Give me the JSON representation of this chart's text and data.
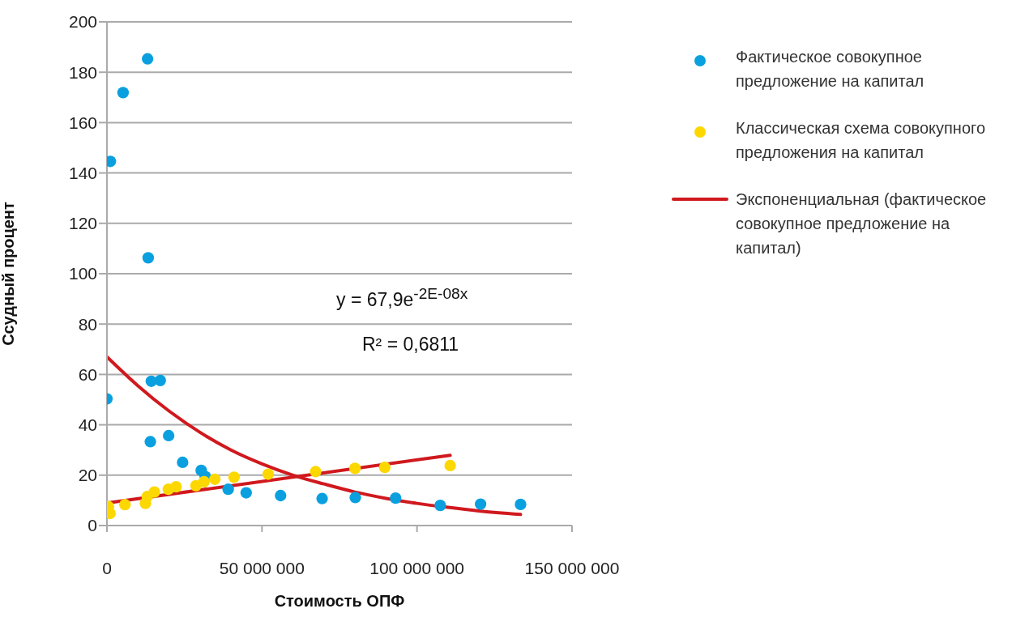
{
  "chart_data": {
    "type": "scatter",
    "xlabel": "Стоимость ОПФ",
    "ylabel": "Ссудный процент",
    "xlim": [
      0,
      150000000
    ],
    "xticks": [
      0,
      {
        "value": 50000000,
        "label": "50 000 000"
      },
      {
        "value": 100000000,
        "label": "100 000 000"
      },
      {
        "value": 150000000,
        "label": "150 000 000"
      }
    ],
    "ylim": [
      0,
      200
    ],
    "yticks": [
      0,
      20,
      40,
      60,
      80,
      100,
      120,
      140,
      160,
      180,
      200
    ],
    "grid": "y",
    "legend": "right",
    "marker": "circle",
    "annotations": [
      "y = 67,9e$^{-2E-08x}$",
      "R² = 0,6811"
    ],
    "series": [
      {
        "name": "Фактическое совокупное предложение на капитал",
        "color": "#0aa0e0",
        "x": [
          0,
          1100000,
          5200000,
          13100000,
          13300000,
          14300000,
          17200000,
          14000000,
          19900000,
          24400000,
          30400000,
          31700000,
          39100000,
          44900000,
          56000000,
          69400000,
          80100000,
          93100000,
          107500000,
          120500000,
          133400000
        ],
        "values": [
          50.3,
          144.6,
          171.9,
          185.3,
          106.3,
          57.3,
          57.6,
          33.3,
          35.7,
          25.1,
          21.9,
          19.5,
          14.4,
          13.0,
          11.9,
          10.7,
          11.1,
          10.9,
          8.0,
          8.5,
          8.4
        ]
      },
      {
        "name": "Классическая схема совокупного предложения на капитал",
        "color": "#fcd800",
        "x": [
          500000,
          1000000,
          5800000,
          12400000,
          13000000,
          15300000,
          19800000,
          22300000,
          28700000,
          31300000,
          34800000,
          41000000,
          52000000,
          67300000,
          80000000,
          89600000,
          110700000
        ],
        "values": [
          7.5,
          4.8,
          8.3,
          8.8,
          11.5,
          13.3,
          14.4,
          15.4,
          15.8,
          17.4,
          18.4,
          19.2,
          20.4,
          21.4,
          22.7,
          23.1,
          23.8
        ]
      },
      {
        "name": "Экспоненциальная (фактическое совокупное предложение на капитал)",
        "type": "line",
        "marker": "none",
        "color": "#d0191e",
        "x": [
          0,
          10000000,
          20000000,
          30000000,
          40000000,
          50000000,
          60000000,
          70000000,
          80000000,
          90000000,
          100000000,
          110000000,
          120000000,
          133400000
        ],
        "values": [
          67,
          55.5,
          45.5,
          37,
          30,
          24.5,
          20,
          16.5,
          13.3,
          10.8,
          8.8,
          7.2,
          5.8,
          4.4
        ]
      },
      {
        "type": "line",
        "marker": "none",
        "color": "#d0191e",
        "x": [
          800000,
          110700000
        ],
        "values": [
          9.1,
          27.9
        ]
      }
    ]
  }
}
